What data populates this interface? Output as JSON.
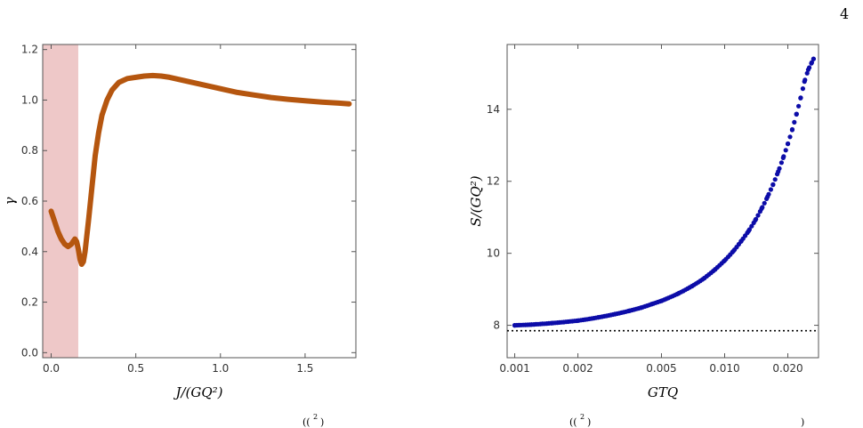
{
  "page_number": "4",
  "chart_data": [
    {
      "type": "line",
      "title": "",
      "xlabel": "J/(GQ²)",
      "ylabel": "γ",
      "xlim": [
        -0.05,
        1.8
      ],
      "ylim": [
        -0.02,
        1.22
      ],
      "x_ticks": [
        "0.0",
        "0.5",
        "1.0",
        "1.5"
      ],
      "y_ticks": [
        "0.0",
        "0.2",
        "0.4",
        "0.6",
        "0.8",
        "1.0",
        "1.2"
      ],
      "shaded_region": {
        "x_from": -0.05,
        "x_to": 0.16,
        "color": "#eec8c8"
      },
      "line_color": "#b5560f",
      "grid": false,
      "series": [
        {
          "x": [
            0.0,
            0.02,
            0.04,
            0.06,
            0.08,
            0.1,
            0.12,
            0.13,
            0.14,
            0.15,
            0.16,
            0.17,
            0.18,
            0.19,
            0.2,
            0.22,
            0.24,
            0.26,
            0.28,
            0.3,
            0.33,
            0.36,
            0.4,
            0.45,
            0.5,
            0.55,
            0.6,
            0.65,
            0.7,
            0.8,
            0.9,
            1.0,
            1.1,
            1.2,
            1.3,
            1.4,
            1.5,
            1.6,
            1.7,
            1.76
          ],
          "values": [
            0.56,
            0.52,
            0.48,
            0.45,
            0.43,
            0.42,
            0.43,
            0.44,
            0.45,
            0.44,
            0.41,
            0.37,
            0.35,
            0.36,
            0.4,
            0.52,
            0.65,
            0.78,
            0.87,
            0.94,
            1.0,
            1.04,
            1.07,
            1.085,
            1.09,
            1.095,
            1.097,
            1.095,
            1.09,
            1.075,
            1.06,
            1.045,
            1.03,
            1.02,
            1.01,
            1.003,
            0.997,
            0.992,
            0.988,
            0.985
          ]
        }
      ]
    },
    {
      "type": "scatter",
      "title": "",
      "xlabel": "GTQ",
      "ylabel": "S/(GQ²)",
      "x_scale": "log",
      "xlim": [
        0.00092,
        0.028
      ],
      "ylim": [
        7.1,
        15.8
      ],
      "x_ticks": [
        "0.001",
        "0.002",
        "0.005",
        "0.010",
        "0.020"
      ],
      "x_tick_values": [
        0.001,
        0.002,
        0.005,
        0.01,
        0.02
      ],
      "y_ticks": [
        "8",
        "10",
        "12",
        "14"
      ],
      "y_tick_values": [
        8,
        10,
        12,
        14
      ],
      "dot_color": "#0c0ca8",
      "reference_line": {
        "y": 7.85,
        "style": "dotted",
        "color": "#000000"
      },
      "grid": false,
      "series": [
        {
          "x": [
            0.001,
            0.0012,
            0.0015,
            0.002,
            0.0025,
            0.003,
            0.0035,
            0.004,
            0.0045,
            0.005,
            0.006,
            0.007,
            0.008,
            0.009,
            0.01,
            0.011,
            0.012,
            0.013,
            0.014,
            0.015,
            0.016,
            0.017,
            0.018,
            0.019,
            0.02,
            0.021,
            0.022,
            0.023,
            0.024,
            0.025,
            0.026,
            0.0265
          ],
          "values": [
            8.0,
            8.02,
            8.06,
            8.13,
            8.22,
            8.31,
            8.4,
            8.49,
            8.59,
            8.68,
            8.88,
            9.09,
            9.31,
            9.55,
            9.8,
            10.06,
            10.34,
            10.62,
            10.92,
            11.24,
            11.57,
            11.91,
            12.27,
            12.65,
            13.04,
            13.44,
            13.87,
            14.31,
            14.77,
            15.1,
            15.3,
            15.4
          ]
        }
      ]
    }
  ],
  "caption_fragments": [
    "((",
    "2",
    ")",
    "((",
    "2",
    ")",
    ")"
  ]
}
